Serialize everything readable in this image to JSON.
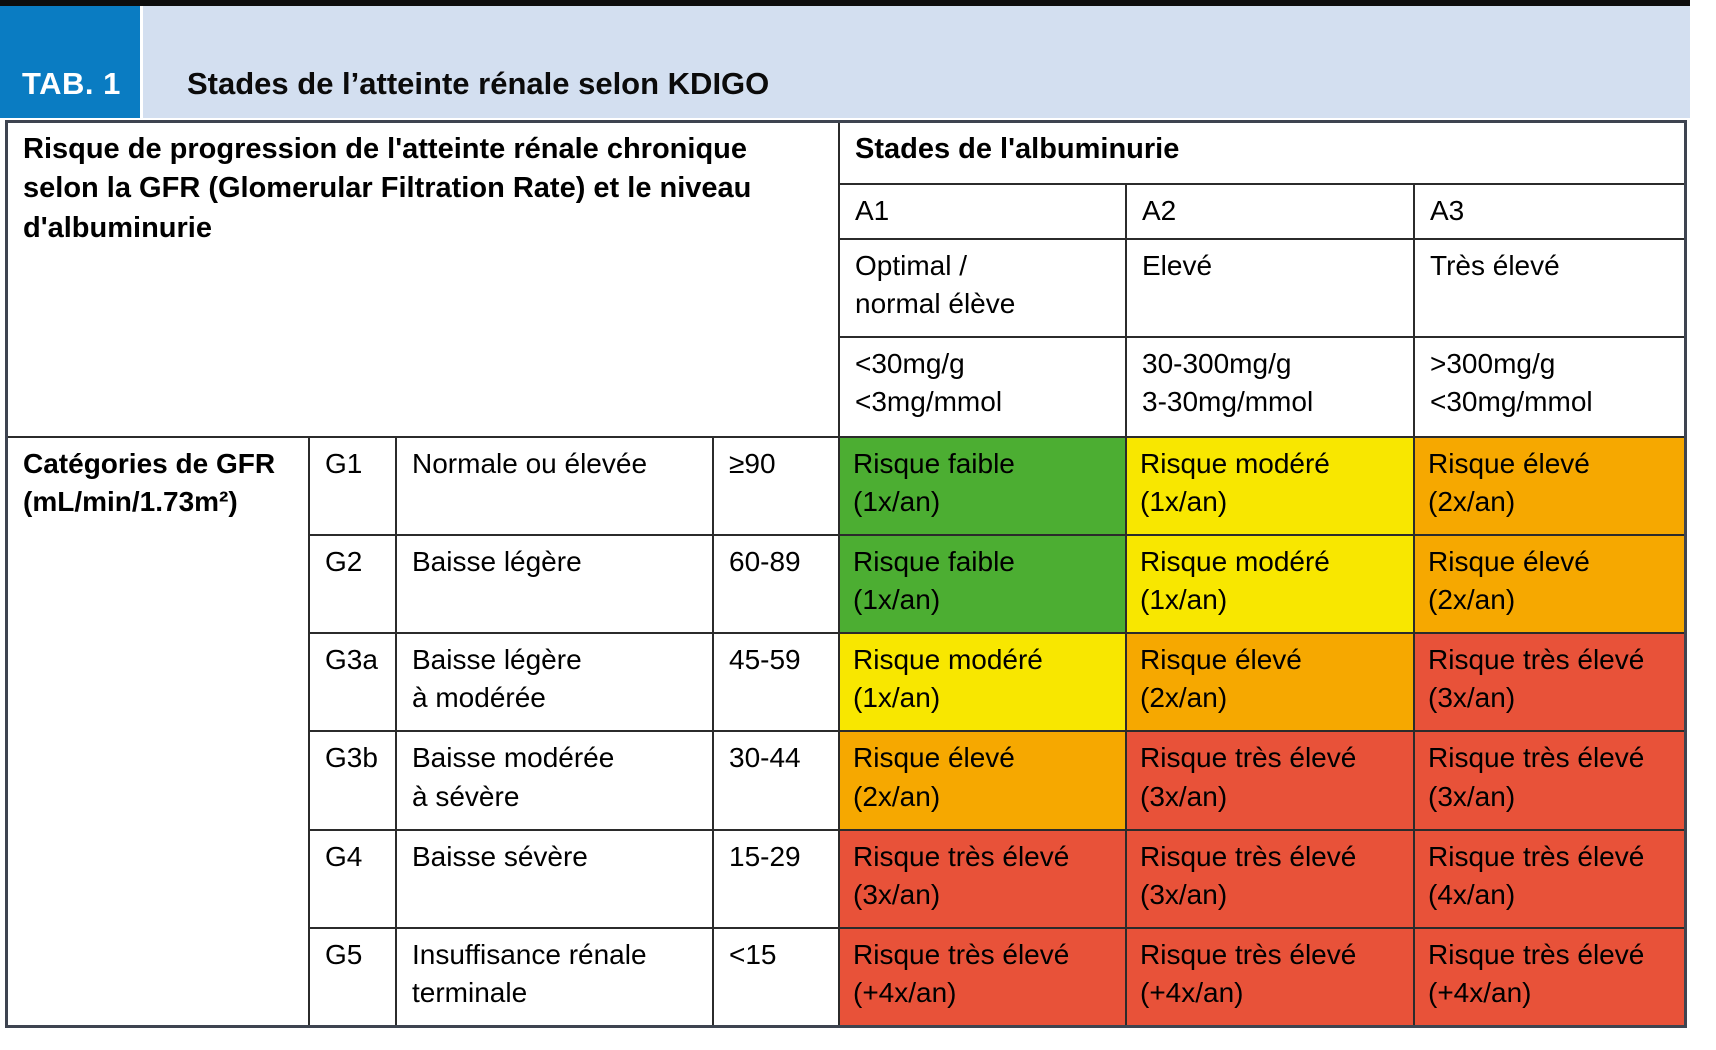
{
  "header": {
    "tab_label": "TAB. 1",
    "title": "Stades de l’atteinte rénale selon KDIGO"
  },
  "colors": {
    "accent_blue": "#0a7cc2",
    "light_blue": "#d3dff0",
    "green": "#4cae32",
    "yellow": "#f8e700",
    "orange": "#f6a800",
    "red": "#e85239"
  },
  "table": {
    "risk_header_lines": [
      "Risque de progression de l'atteinte rénale chronique",
      "selon la GFR (Glomerular Filtration Rate) et le niveau",
      "d'albuminurie"
    ],
    "albuminuria": {
      "header": "Stades de l'albuminurie",
      "stages": [
        {
          "code": "A1",
          "level": [
            "Optimal /",
            "normal élève"
          ],
          "range": [
            "<30mg/g",
            "<3mg/mmol"
          ]
        },
        {
          "code": "A2",
          "level": [
            "Elevé",
            ""
          ],
          "range": [
            "30-300mg/g",
            "3-30mg/mmol"
          ]
        },
        {
          "code": "A3",
          "level": [
            "Très élevé",
            ""
          ],
          "range": [
            ">300mg/g",
            "<30mg/mmol"
          ]
        }
      ]
    },
    "gfr": {
      "header_lines": [
        "Catégories de GFR",
        "(mL/min/1.73m²)"
      ]
    },
    "rows": [
      {
        "code": "G1",
        "label": [
          "Normale ou élevée",
          ""
        ],
        "range": "≥90",
        "risks": [
          {
            "lines": [
              "Risque faible",
              "(1x/an)"
            ],
            "level": "faible",
            "color": "#4cae32"
          },
          {
            "lines": [
              "Risque modéré",
              "(1x/an)"
            ],
            "level": "modere",
            "color": "#f8e700"
          },
          {
            "lines": [
              "Risque élevé",
              "(2x/an)"
            ],
            "level": "eleve",
            "color": "#f6a800"
          }
        ]
      },
      {
        "code": "G2",
        "label": [
          "Baisse légère",
          ""
        ],
        "range": "60-89",
        "risks": [
          {
            "lines": [
              "Risque faible",
              "(1x/an)"
            ],
            "level": "faible",
            "color": "#4cae32"
          },
          {
            "lines": [
              "Risque modéré",
              "(1x/an)"
            ],
            "level": "modere",
            "color": "#f8e700"
          },
          {
            "lines": [
              "Risque élevé",
              "(2x/an)"
            ],
            "level": "eleve",
            "color": "#f6a800"
          }
        ]
      },
      {
        "code": "G3a",
        "label": [
          "Baisse légère",
          "à modérée"
        ],
        "range": "45-59",
        "risks": [
          {
            "lines": [
              "Risque modéré",
              "(1x/an)"
            ],
            "level": "modere",
            "color": "#f8e700"
          },
          {
            "lines": [
              "Risque élevé",
              "(2x/an)"
            ],
            "level": "eleve",
            "color": "#f6a800"
          },
          {
            "lines": [
              "Risque très élevé",
              "(3x/an)"
            ],
            "level": "tres-eleve",
            "color": "#e85239"
          }
        ]
      },
      {
        "code": "G3b",
        "label": [
          "Baisse modérée",
          "à sévère"
        ],
        "range": "30-44",
        "risks": [
          {
            "lines": [
              "Risque élevé",
              "(2x/an)"
            ],
            "level": "eleve",
            "color": "#f6a800"
          },
          {
            "lines": [
              "Risque très élevé",
              "(3x/an)"
            ],
            "level": "tres-eleve",
            "color": "#e85239"
          },
          {
            "lines": [
              "Risque très élevé",
              "(3x/an)"
            ],
            "level": "tres-eleve",
            "color": "#e85239"
          }
        ]
      },
      {
        "code": "G4",
        "label": [
          "Baisse sévère",
          ""
        ],
        "range": "15-29",
        "risks": [
          {
            "lines": [
              "Risque très élevé",
              "(3x/an)"
            ],
            "level": "tres-eleve",
            "color": "#e85239"
          },
          {
            "lines": [
              "Risque très élevé",
              "(3x/an)"
            ],
            "level": "tres-eleve",
            "color": "#e85239"
          },
          {
            "lines": [
              "Risque très élevé",
              "(4x/an)"
            ],
            "level": "tres-eleve",
            "color": "#e85239"
          }
        ]
      },
      {
        "code": "G5",
        "label": [
          "Insuffisance rénale",
          "terminale"
        ],
        "range": "<15",
        "risks": [
          {
            "lines": [
              "Risque très élevé",
              "(+4x/an)"
            ],
            "level": "tres-eleve",
            "color": "#e85239"
          },
          {
            "lines": [
              "Risque très élevé",
              "(+4x/an)"
            ],
            "level": "tres-eleve",
            "color": "#e85239"
          },
          {
            "lines": [
              "Risque très élevé",
              "(+4x/an)"
            ],
            "level": "tres-eleve",
            "color": "#e85239"
          }
        ]
      }
    ]
  }
}
